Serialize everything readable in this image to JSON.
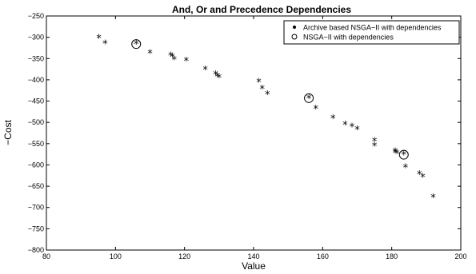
{
  "chart_data": {
    "type": "scatter",
    "title": "And, Or and Precedence Dependencies",
    "xlabel": "Value",
    "ylabel": "−Cost",
    "xlim": [
      80,
      200
    ],
    "ylim": [
      -800,
      -250
    ],
    "xticks": [
      "80",
      "100",
      "120",
      "140",
      "160",
      "180",
      "200"
    ],
    "yticks": [
      "−250",
      "−300",
      "−350",
      "−400",
      "−450",
      "−500",
      "−550",
      "−600",
      "−650",
      "−700",
      "−750",
      "−800"
    ],
    "grid": false,
    "legend_position": "top-right",
    "series": [
      {
        "name": "Archive based NSGA−II with dependencies",
        "marker": "star",
        "points": [
          [
            95.2,
            -302
          ],
          [
            97.0,
            -315
          ],
          [
            106.0,
            -316
          ],
          [
            110.0,
            -337
          ],
          [
            116.0,
            -343
          ],
          [
            116.5,
            -346
          ],
          [
            117.0,
            -352
          ],
          [
            120.5,
            -355
          ],
          [
            126.0,
            -376
          ],
          [
            129.0,
            -387
          ],
          [
            129.5,
            -392
          ],
          [
            130.0,
            -395
          ],
          [
            141.5,
            -405
          ],
          [
            142.5,
            -421
          ],
          [
            144.0,
            -434
          ],
          [
            156.0,
            -443
          ],
          [
            158.0,
            -468
          ],
          [
            163.0,
            -490
          ],
          [
            166.5,
            -505
          ],
          [
            168.5,
            -510
          ],
          [
            170.0,
            -517
          ],
          [
            175.0,
            -544
          ],
          [
            175.0,
            -555
          ],
          [
            181.0,
            -568
          ],
          [
            181.0,
            -571
          ],
          [
            181.5,
            -573
          ],
          [
            183.5,
            -576
          ],
          [
            184.0,
            -606
          ],
          [
            188.0,
            -622
          ],
          [
            189.0,
            -628
          ],
          [
            192.0,
            -676
          ]
        ]
      },
      {
        "name": "NSGA−II with dependencies",
        "marker": "circle",
        "points": [
          [
            106.0,
            -316
          ],
          [
            156.0,
            -443
          ],
          [
            183.5,
            -576
          ]
        ]
      }
    ]
  }
}
